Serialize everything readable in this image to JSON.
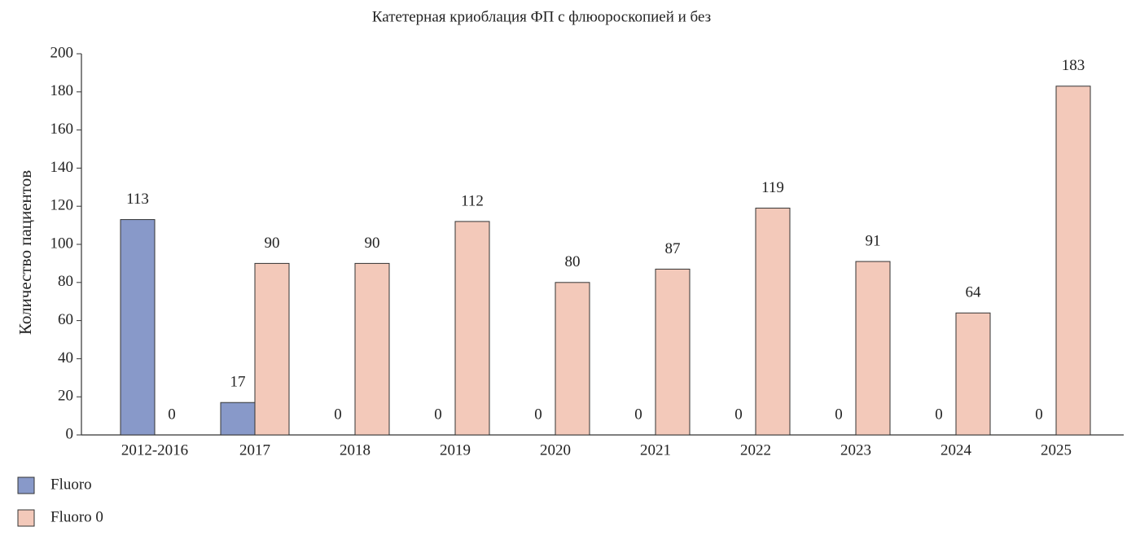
{
  "chart_data": {
    "type": "bar",
    "title": "Катетерная криоблация ФП с флюороскопией и без",
    "y_label": "Количество пациентов",
    "categories": [
      "2012-2016",
      "2017",
      "2018",
      "2019",
      "2020",
      "2021",
      "2022",
      "2023",
      "2024",
      "2025"
    ],
    "series": [
      {
        "name": "Fluoro",
        "color": "#8899c9",
        "values": [
          113,
          17,
          0,
          0,
          0,
          0,
          0,
          0,
          0,
          0
        ]
      },
      {
        "name": "Fluoro 0",
        "color": "#f3c9ba",
        "values": [
          0,
          90,
          90,
          112,
          80,
          87,
          119,
          91,
          64,
          183
        ]
      }
    ],
    "ylim": [
      0,
      200
    ],
    "yticks": [
      0,
      20,
      40,
      60,
      80,
      100,
      120,
      140,
      160,
      180,
      200
    ],
    "legend": "bottom-left"
  }
}
